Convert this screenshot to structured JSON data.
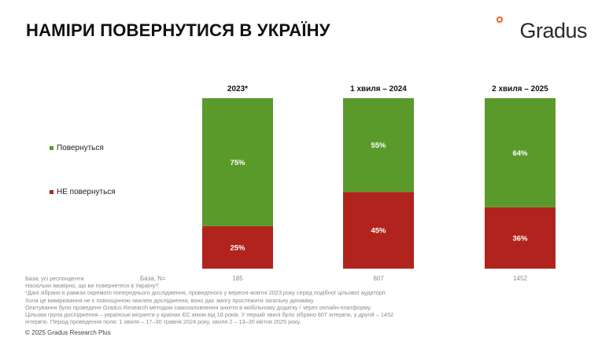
{
  "title": "НАМІРИ ПОВЕРНУТИСЯ В УКРАЇНУ",
  "logo": {
    "text": "Gradus"
  },
  "chart_data": {
    "type": "bar",
    "stacked": true,
    "normalized_to": 100,
    "categories": [
      "2023*",
      "1 хвиля – 2024",
      "2 хвиля – 2025"
    ],
    "series": [
      {
        "name": "НЕ повернуться",
        "values": [
          25,
          45,
          36
        ],
        "labels": [
          "25%",
          "45%",
          "36%"
        ],
        "color": "#b0241d"
      },
      {
        "name": "Повернуться",
        "values": [
          75,
          55,
          64
        ],
        "labels": [
          "75%",
          "55%",
          "64%"
        ],
        "color": "#5a9a2b"
      }
    ],
    "ylim": [
      0,
      100
    ],
    "grid": false,
    "legend_position": "left"
  },
  "base": {
    "label": "База, N=",
    "values": [
      "185",
      "607",
      "1452"
    ]
  },
  "footnotes": [
    "База: усі респонденти",
    "Наскільки імовірно, що ви повернетеся в Україну?",
    "*Дані зібрано в рамках окремого попереднього дослідження, проведеного у вересні-жовтні 2023 року серед подібної цільової аудиторії.",
    "Хоча це вимірювання не є повноцінною хвилею дослідження, воно дає змогу простежити загальну динаміку.",
    "Опитування було проведене Gradus Research методом самозаповнення анкети в мобільному додатку / через онлайн-платформу.",
    "Цільова група дослідження – українські мігранти у країнах ЄС віком від 18 років. У першій хвилі було зібрано 607 інтерв'ю, у другій – 1452",
    "інтерв'ю. Період проведення поля: 1 хвиля – 17–30 травня 2024 року, хвиля 2 – 13–30 квітня 2025 року."
  ],
  "copyright": "© 2025 Gradus Research Plus"
}
